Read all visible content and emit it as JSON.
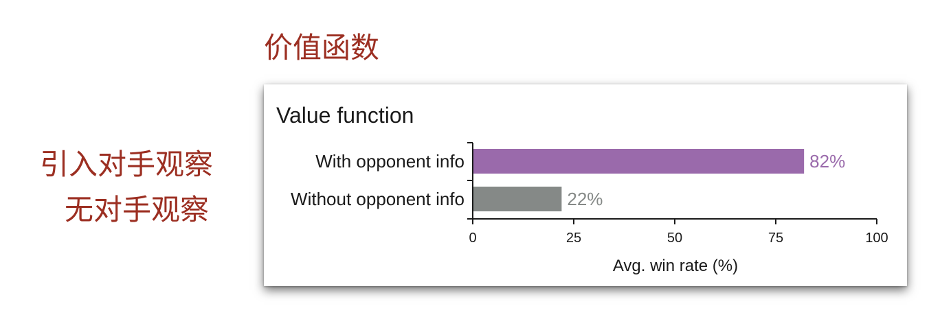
{
  "slide": {
    "title": "价值函数",
    "side_labels": [
      "引入对手观察",
      "无对手观察"
    ],
    "accent_color": "#9c2f22"
  },
  "chart_data": {
    "type": "bar",
    "orientation": "horizontal",
    "title": "Value function",
    "categories": [
      "With opponent info",
      "Without opponent info"
    ],
    "values": [
      82,
      22
    ],
    "value_labels": [
      "82%",
      "22%"
    ],
    "colors": [
      "#9a6aab",
      "#858987"
    ],
    "xlabel": "Avg. win rate (%)",
    "ylabel": "",
    "xlim": [
      0,
      100
    ],
    "xticks": [
      0,
      25,
      50,
      75,
      100
    ],
    "grid": false,
    "legend": "none"
  }
}
